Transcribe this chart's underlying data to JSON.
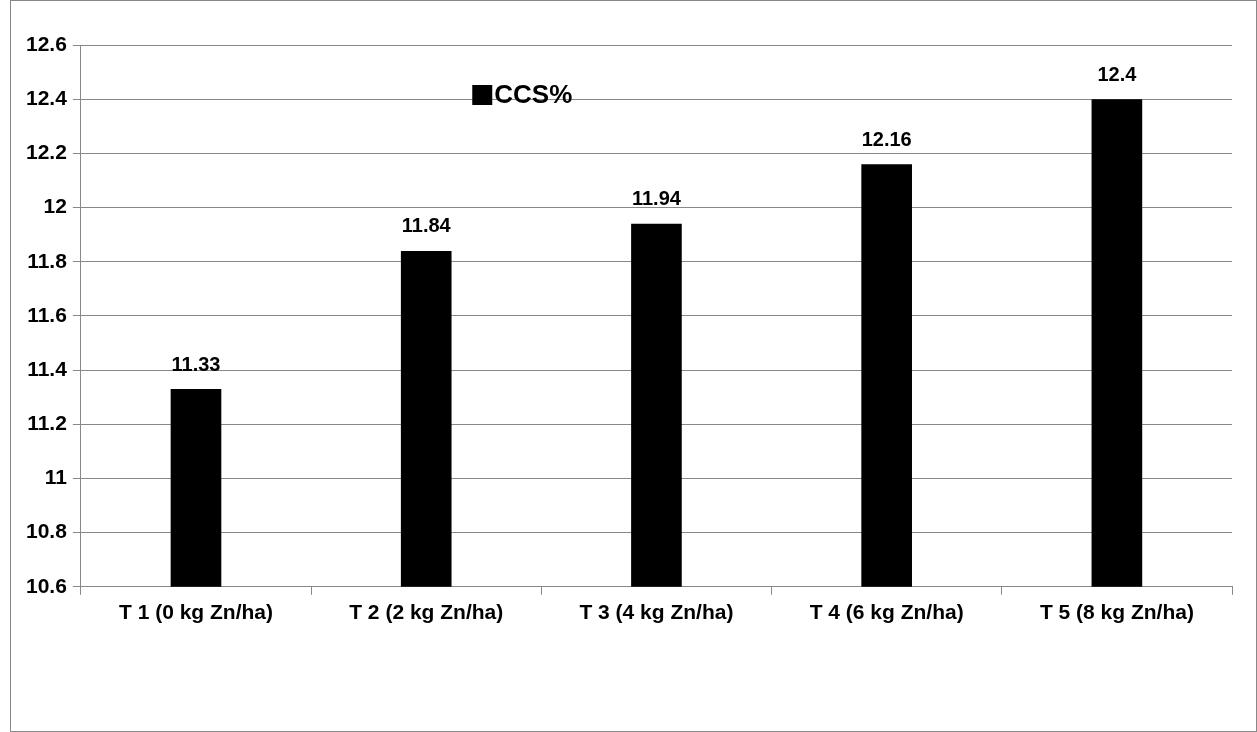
{
  "chart_data": {
    "type": "bar",
    "categories": [
      "T 1 (0 kg Zn/ha)",
      "T 2 (2 kg Zn/ha)",
      "T 3 (4 kg Zn/ha)",
      "T 4 (6 kg Zn/ha)",
      "T 5 (8 kg Zn/ha)"
    ],
    "series": [
      {
        "name": "CCS%",
        "color": "#000000",
        "values": [
          11.33,
          11.84,
          11.94,
          12.16,
          12.4
        ]
      }
    ],
    "ylim": [
      10.6,
      12.6
    ],
    "yticks": [
      10.6,
      10.8,
      11,
      11.2,
      11.4,
      11.6,
      11.8,
      12,
      12.2,
      12.4,
      12.6
    ],
    "grid": "y",
    "legend": "top",
    "data_labels": true
  }
}
